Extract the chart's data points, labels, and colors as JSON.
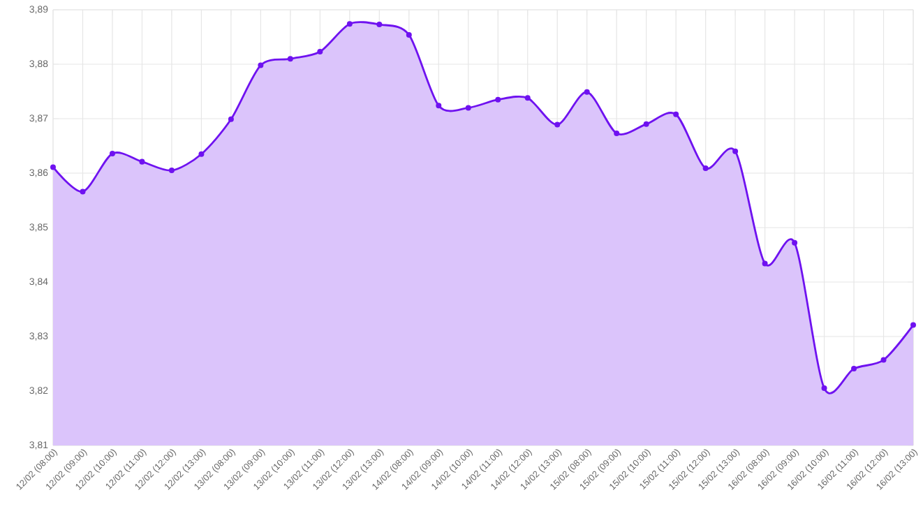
{
  "chart_data": {
    "type": "area",
    "categories": [
      "12/02 (08:00)",
      "12/02 (09:00)",
      "12/02 (10:00)",
      "12/02 (11:00)",
      "12/02 (12:00)",
      "12/02 (13:00)",
      "13/02 (08:00)",
      "13/02 (09:00)",
      "13/02 (10:00)",
      "13/02 (11:00)",
      "13/02 (12:00)",
      "13/02 (13:00)",
      "14/02 (08:00)",
      "14/02 (09:00)",
      "14/02 (10:00)",
      "14/02 (11:00)",
      "14/02 (12:00)",
      "14/02 (13:00)",
      "15/02 (08:00)",
      "15/02 (09:00)",
      "15/02 (10:00)",
      "15/02 (11:00)",
      "15/02 (12:00)",
      "15/02 (13:00)",
      "16/02 (08:00)",
      "16/02 (09:00)",
      "16/02 (10:00)",
      "16/02 (11:00)",
      "16/02 (12:00)",
      "16/02 (13:00)"
    ],
    "series": [
      {
        "color": "#6f12f0",
        "values": [
          3.8611,
          3.8566,
          3.8636,
          3.8621,
          3.8605,
          3.8635,
          3.8699,
          3.8798,
          3.881,
          3.8823,
          3.8874,
          3.8873,
          3.8854,
          3.8724,
          3.872,
          3.8735,
          3.8738,
          3.8689,
          3.8749,
          3.8673,
          3.869,
          3.8708,
          3.8609,
          3.864,
          3.8434,
          3.8472,
          3.8205,
          3.8241,
          3.8257,
          3.8321
        ]
      }
    ],
    "ylim": [
      3.81,
      3.89
    ],
    "yticks": [
      {
        "value": 3.81,
        "label": "3,81"
      },
      {
        "value": 3.82,
        "label": "3,82"
      },
      {
        "value": 3.83,
        "label": "3,83"
      },
      {
        "value": 3.84,
        "label": "3,84"
      },
      {
        "value": 3.85,
        "label": "3,85"
      },
      {
        "value": 3.86,
        "label": "3,86"
      },
      {
        "value": 3.87,
        "label": "3,87"
      },
      {
        "value": 3.88,
        "label": "3,88"
      },
      {
        "value": 3.89,
        "label": "3,89"
      }
    ],
    "grid": true,
    "marker": "circle",
    "line_style": "solid"
  }
}
